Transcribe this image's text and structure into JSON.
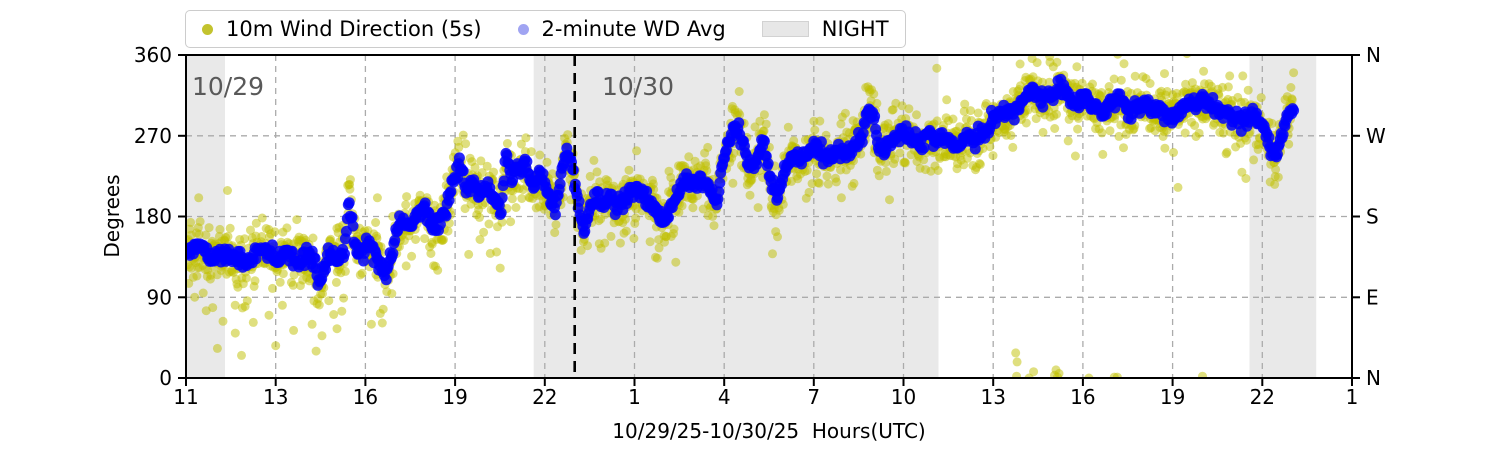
{
  "colors": {
    "background": "#FFFFFF",
    "wind_scatter": "#BFBF00",
    "avg_scatter": "#0000FF",
    "night_fill": "#E9E9E9",
    "grid": "#ABABAB",
    "axis": "#000000",
    "date_label": "#595959",
    "legend_border": "#CCCCCC",
    "legend_yellow_marker": "#C3C32E",
    "legend_blue_marker": "#A0A4F2",
    "legend_night_patch": "#E7E7E7",
    "date_boundary_line": "#000000"
  },
  "legend": {
    "items": [
      {
        "label": "10m Wind Direction (5s)",
        "marker": "yellow-dot"
      },
      {
        "label": "2-minute WD Avg",
        "marker": "blue-dot"
      },
      {
        "label": "NIGHT",
        "marker": "gray-patch"
      }
    ]
  },
  "chart_data": {
    "type": "scatter",
    "title": "",
    "xlabel": "10/29/25-10/30/25  Hours(UTC)",
    "ylabel": "Degrees",
    "ylim": [
      0,
      360
    ],
    "grid": "dashed",
    "legend_position": "top",
    "x_axis": {
      "tick_labels": [
        "11",
        "13",
        "16",
        "19",
        "22",
        "1",
        "4",
        "7",
        "10",
        "13",
        "16",
        "19",
        "22",
        "1"
      ],
      "tick_hours_continuous": [
        11,
        13,
        16,
        19,
        22,
        25,
        28,
        31,
        34,
        37,
        40,
        43,
        46,
        49
      ],
      "range_hours": [
        11,
        49
      ],
      "tick_spacing": "uniform-pixel"
    },
    "y_axis_left": {
      "label": "Degrees",
      "ticks": [
        0,
        90,
        180,
        270,
        360
      ]
    },
    "y_axis_right": {
      "ticks": [
        {
          "deg": 360,
          "label": "N"
        },
        {
          "deg": 270,
          "label": "W"
        },
        {
          "deg": 180,
          "label": "S"
        },
        {
          "deg": 90,
          "label": "E"
        },
        {
          "deg": 0,
          "label": "N"
        }
      ]
    },
    "annotations": [
      {
        "text": "10/29",
        "hour": 11.2,
        "deg": 330
      },
      {
        "text": "10/30",
        "hour": 24.0,
        "deg": 330
      }
    ],
    "date_boundary_hour": 23.0,
    "night_regions_hours": [
      [
        11.0,
        11.87
      ],
      [
        21.63,
        35.17
      ],
      [
        45.57,
        47.8
      ]
    ],
    "data_start_hour": 11.0,
    "data_end_hour": 47.05,
    "series": [
      {
        "name": "10m Wind Direction (5s)",
        "marker": "dot",
        "color": "#BFBF00",
        "opacity": 0.5,
        "marker_radius": 4.5,
        "derivation": "average_keypoints_plus_noise",
        "noise_sigma_deg": 13,
        "noise_sigma_wide_deg": 26,
        "wide_fraction": 0.22,
        "outliers_hour_deg": [
          [
            11.45,
            75
          ],
          [
            11.7,
            33
          ],
          [
            12.1,
            50
          ],
          [
            12.5,
            62
          ],
          [
            12.85,
            70
          ],
          [
            13.0,
            36
          ],
          [
            13.6,
            53
          ],
          [
            14.35,
            30
          ],
          [
            14.55,
            47
          ],
          [
            15.05,
            55
          ],
          [
            16.2,
            60
          ],
          [
            16.5,
            72
          ],
          [
            37.75,
            28
          ],
          [
            37.78,
            2
          ],
          [
            37.8,
            18
          ],
          [
            38.2,
            0
          ],
          [
            38.35,
            7
          ],
          [
            39.05,
            3
          ],
          [
            39.1,
            9
          ],
          [
            39.15,
            1
          ],
          [
            39.2,
            5
          ],
          [
            40.2,
            0
          ],
          [
            41.05,
            1
          ],
          [
            41.15,
            1
          ],
          [
            44.0,
            2
          ],
          [
            37.9,
            350
          ],
          [
            38.3,
            356
          ],
          [
            38.9,
            352
          ],
          [
            39.8,
            347
          ]
        ]
      },
      {
        "name": "2-minute WD Avg",
        "marker": "dot",
        "color": "#0000FF",
        "opacity": 0.85,
        "marker_radius": 5.5,
        "jitter_sigma_deg": 4.5,
        "keypoints_hour_deg": [
          [
            11,
            138
          ],
          [
            11.3,
            146
          ],
          [
            11.6,
            131
          ],
          [
            11.85,
            140
          ],
          [
            12.1,
            134
          ],
          [
            12.35,
            128
          ],
          [
            12.7,
            144
          ],
          [
            13.05,
            133
          ],
          [
            13.4,
            143
          ],
          [
            13.75,
            127
          ],
          [
            14.1,
            139
          ],
          [
            14.3,
            128
          ],
          [
            14.45,
            101
          ],
          [
            14.6,
            126
          ],
          [
            14.75,
            137
          ],
          [
            15.1,
            133
          ],
          [
            15.3,
            140
          ],
          [
            15.45,
            203
          ],
          [
            15.6,
            160
          ],
          [
            15.75,
            139
          ],
          [
            16,
            149
          ],
          [
            16.35,
            140
          ],
          [
            16.55,
            124
          ],
          [
            16.7,
            113
          ],
          [
            16.85,
            135
          ],
          [
            17,
            155
          ],
          [
            17.2,
            176
          ],
          [
            17.45,
            168
          ],
          [
            17.7,
            182
          ],
          [
            18,
            192
          ],
          [
            18.2,
            168
          ],
          [
            18.45,
            172
          ],
          [
            18.7,
            188
          ],
          [
            19,
            226
          ],
          [
            19.15,
            238
          ],
          [
            19.35,
            210
          ],
          [
            19.6,
            218
          ],
          [
            19.85,
            208
          ],
          [
            20.1,
            214
          ],
          [
            20.35,
            196
          ],
          [
            20.55,
            190
          ],
          [
            20.7,
            248
          ],
          [
            20.9,
            225
          ],
          [
            21.1,
            232
          ],
          [
            21.35,
            241
          ],
          [
            21.6,
            214
          ],
          [
            21.8,
            228
          ],
          [
            22,
            217
          ],
          [
            22.2,
            196
          ],
          [
            22.35,
            187
          ],
          [
            22.55,
            225
          ],
          [
            22.75,
            251
          ],
          [
            22.9,
            235
          ],
          [
            23.05,
            210
          ],
          [
            23.2,
            178
          ],
          [
            23.35,
            167
          ],
          [
            23.5,
            188
          ],
          [
            23.7,
            200
          ],
          [
            23.9,
            193
          ],
          [
            24.1,
            204
          ],
          [
            24.35,
            196
          ],
          [
            24.6,
            192
          ],
          [
            24.8,
            204
          ],
          [
            25.05,
            209
          ],
          [
            25.3,
            201
          ],
          [
            25.55,
            193
          ],
          [
            25.75,
            182
          ],
          [
            25.95,
            172
          ],
          [
            26.2,
            190
          ],
          [
            26.45,
            205
          ],
          [
            26.7,
            222
          ],
          [
            26.95,
            217
          ],
          [
            27.2,
            222
          ],
          [
            27.45,
            218
          ],
          [
            27.6,
            204
          ],
          [
            27.75,
            196
          ],
          [
            27.95,
            238
          ],
          [
            28.15,
            262
          ],
          [
            28.35,
            278
          ],
          [
            28.5,
            278
          ],
          [
            28.65,
            256
          ],
          [
            28.85,
            236
          ],
          [
            29.05,
            242
          ],
          [
            29.2,
            256
          ],
          [
            29.35,
            262
          ],
          [
            29.6,
            212
          ],
          [
            29.85,
            205
          ],
          [
            30.1,
            240
          ],
          [
            30.35,
            247
          ],
          [
            30.6,
            242
          ],
          [
            30.85,
            252
          ],
          [
            31.05,
            262
          ],
          [
            31.3,
            248
          ],
          [
            31.55,
            244
          ],
          [
            31.8,
            252
          ],
          [
            32.05,
            250
          ],
          [
            32.3,
            256
          ],
          [
            32.6,
            268
          ],
          [
            32.8,
            300
          ],
          [
            33,
            293
          ],
          [
            33.15,
            256
          ],
          [
            33.35,
            258
          ],
          [
            33.6,
            264
          ],
          [
            33.85,
            272
          ],
          [
            34.1,
            270
          ],
          [
            34.35,
            266
          ],
          [
            34.6,
            259
          ],
          [
            34.85,
            271
          ],
          [
            35.1,
            264
          ],
          [
            35.35,
            269
          ],
          [
            35.6,
            262
          ],
          [
            35.85,
            258
          ],
          [
            36.1,
            270
          ],
          [
            36.35,
            265
          ],
          [
            36.6,
            268
          ],
          [
            36.85,
            280
          ],
          [
            37.1,
            290
          ],
          [
            37.35,
            297
          ],
          [
            37.6,
            294
          ],
          [
            37.85,
            302
          ],
          [
            38.1,
            312
          ],
          [
            38.35,
            320
          ],
          [
            38.6,
            309
          ],
          [
            38.85,
            314
          ],
          [
            39.1,
            318
          ],
          [
            39.35,
            325
          ],
          [
            39.6,
            310
          ],
          [
            39.8,
            303
          ],
          [
            40,
            313
          ],
          [
            40.25,
            308
          ],
          [
            40.5,
            303
          ],
          [
            40.75,
            299
          ],
          [
            41,
            306
          ],
          [
            41.25,
            311
          ],
          [
            41.5,
            297
          ],
          [
            41.75,
            301
          ],
          [
            42,
            306
          ],
          [
            42.25,
            299
          ],
          [
            42.5,
            303
          ],
          [
            42.75,
            295
          ],
          [
            43,
            291
          ],
          [
            43.25,
            297
          ],
          [
            43.5,
            305
          ],
          [
            43.75,
            308
          ],
          [
            44,
            311
          ],
          [
            44.25,
            304
          ],
          [
            44.5,
            300
          ],
          [
            44.75,
            297
          ],
          [
            45,
            290
          ],
          [
            45.25,
            286
          ],
          [
            45.5,
            291
          ],
          [
            45.75,
            293
          ],
          [
            46,
            281
          ],
          [
            46.15,
            271
          ],
          [
            46.3,
            252
          ],
          [
            46.45,
            246
          ],
          [
            46.6,
            265
          ],
          [
            46.75,
            287
          ],
          [
            46.9,
            297
          ],
          [
            47.05,
            300
          ]
        ]
      }
    ]
  }
}
